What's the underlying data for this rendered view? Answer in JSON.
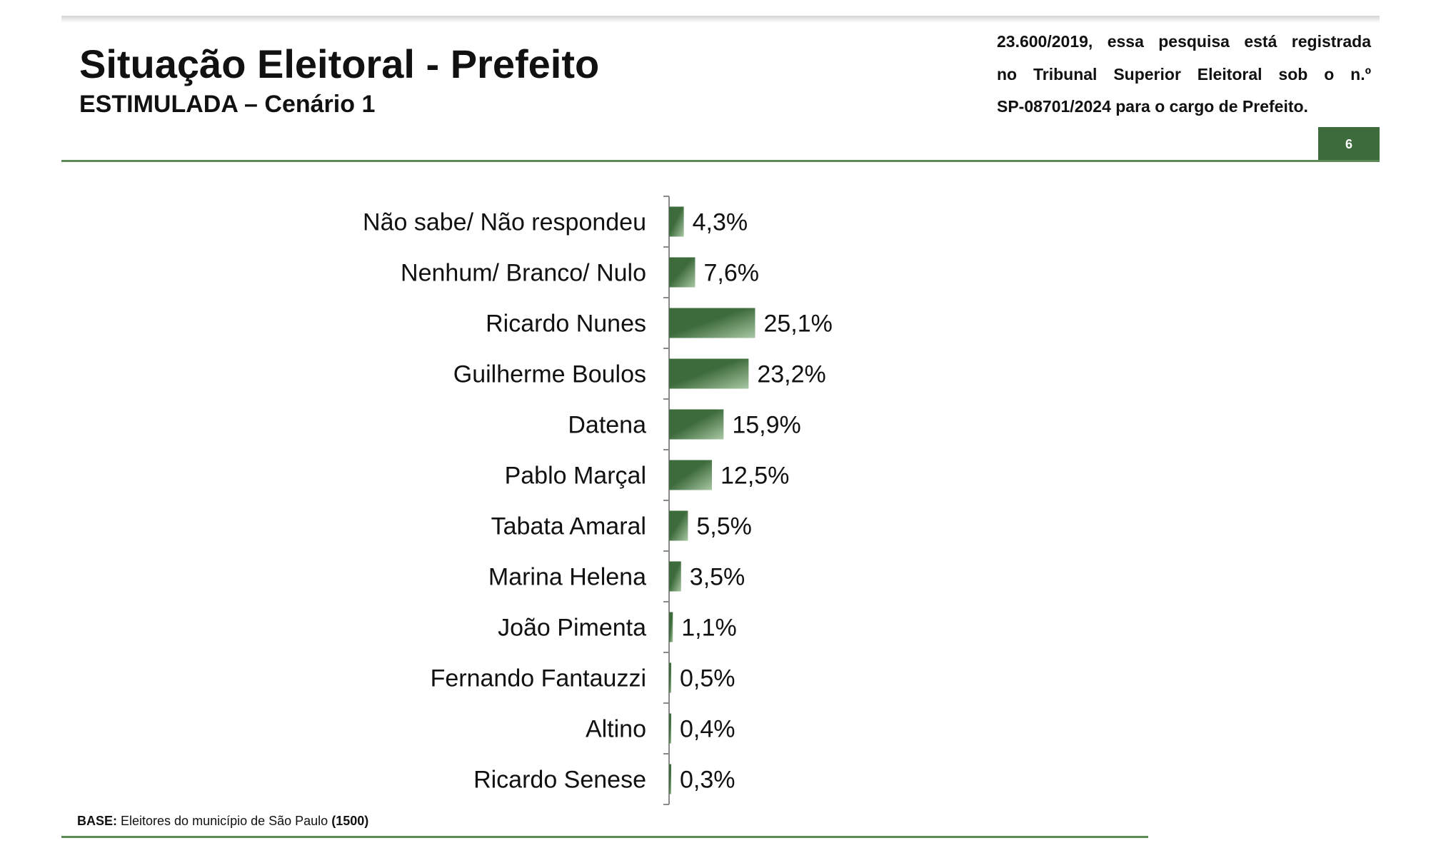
{
  "header": {
    "title": "Situação Eleitoral - Prefeito",
    "subtitle": "ESTIMULADA – Cenário 1",
    "registration_lines": [
      "23.600/2019, essa pesquisa está registrada",
      "no Tribunal Superior Eleitoral sob o n.º",
      "SP-08701/2024 para o cargo de Prefeito."
    ],
    "page_number": "6"
  },
  "footer": {
    "base_label": "BASE:",
    "base_text": " Eleitores do município de São Paulo ",
    "base_count": "(1500)"
  },
  "colors": {
    "bar_dark": "#3d6b3c",
    "bar_light": "#a9c7a4",
    "rule": "#5b8a56",
    "badge": "#3d6b3c"
  },
  "chart_data": {
    "type": "bar",
    "orientation": "horizontal",
    "categories": [
      "Não sabe/ Não respondeu",
      "Nenhum/ Branco/ Nulo",
      "Ricardo Nunes",
      "Guilherme Boulos",
      "Datena",
      "Pablo Marçal",
      "Tabata Amaral",
      "Marina Helena",
      "João Pimenta",
      "Fernando Fantauzzi",
      "Altino",
      "Ricardo Senese"
    ],
    "values": [
      4.3,
      7.6,
      25.1,
      23.2,
      15.9,
      12.5,
      5.5,
      3.5,
      1.1,
      0.5,
      0.4,
      0.3
    ],
    "value_labels": [
      "4,3%",
      "7,6%",
      "25,1%",
      "23,2%",
      "15,9%",
      "12,5%",
      "5,5%",
      "3,5%",
      "1,1%",
      "0,5%",
      "0,4%",
      "0,3%"
    ],
    "unit": "%",
    "xlim": [
      0,
      100
    ],
    "grid": false,
    "legend": "none"
  }
}
